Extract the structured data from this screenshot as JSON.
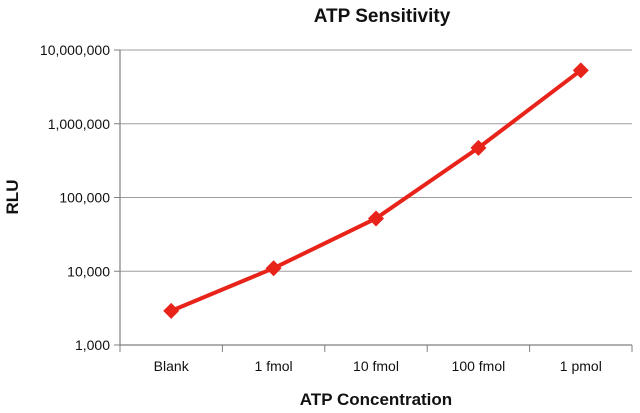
{
  "chart_data": {
    "type": "line",
    "title": "ATP Sensitivity",
    "xlabel": "ATP Concentration",
    "ylabel": "RLU",
    "categories": [
      "Blank",
      "1 fmol",
      "10 fmol",
      "100 fmol",
      "1 pmol"
    ],
    "series": [
      {
        "values": [
          2900,
          11000,
          52000,
          470000,
          5300000
        ]
      }
    ],
    "y_scale": "log",
    "ylim": [
      1000,
      10000000
    ],
    "y_ticks": [
      1000,
      10000,
      100000,
      1000000,
      10000000
    ],
    "y_tick_labels": [
      "1,000",
      "10,000",
      "100,000",
      "1,000,000",
      "10,000,000"
    ],
    "grid": "horizontal",
    "legend": "none",
    "marker": "diamond",
    "colors": {
      "series": "#e8231a",
      "grid": "#9e9e9e",
      "axis": "#7f7f7f",
      "text": "#111111"
    }
  }
}
